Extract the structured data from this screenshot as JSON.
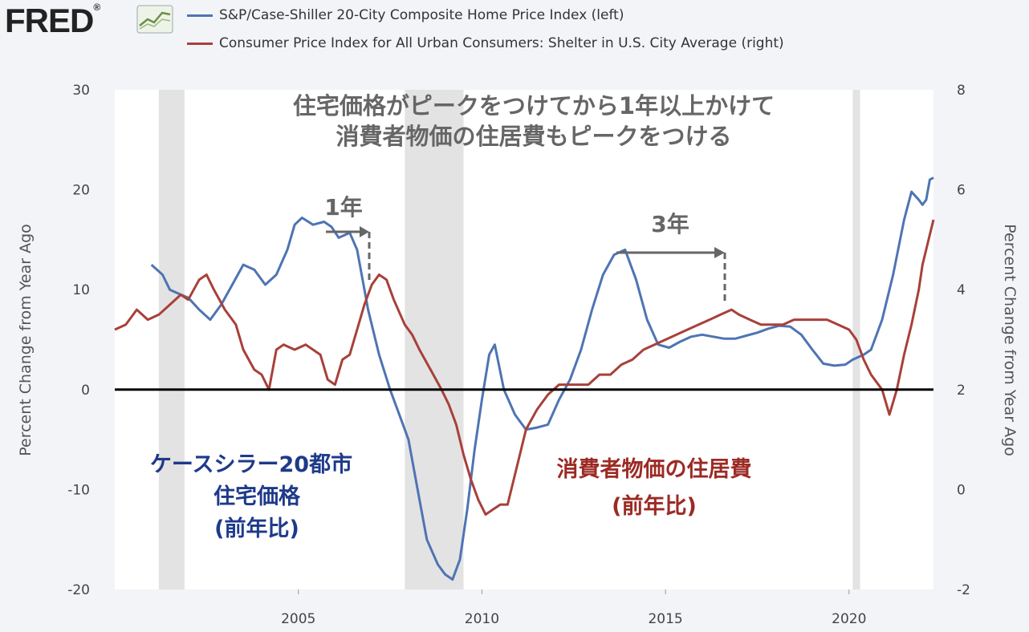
{
  "brand": {
    "logo_text": "FRED",
    "logo_mark": "®"
  },
  "colors": {
    "series1": "#4e74b3",
    "series2": "#a8403a",
    "zero_line": "#000000",
    "recession": "#e3e3e3",
    "plot_bg": "#ffffff"
  },
  "annotations": {
    "title_line1": "住宅価格がピークをつけてから1年以上かけて",
    "title_line2": "消費者物価の住居費もピークをつける",
    "gap1": "1年",
    "gap2": "3年",
    "blue_label": [
      "ケースシラー20都市",
      "住宅価格",
      "(前年比)"
    ],
    "red_label": [
      "消費者物価の住居費",
      "(前年比)"
    ]
  },
  "chart_data": {
    "type": "line",
    "legend_position": "top-left",
    "grid": false,
    "xlabel": "",
    "ylabel_left": "Percent Change from Year Ago",
    "ylabel_right": "Percent Change from Year Ago",
    "xlim": [
      2000.0,
      2022.3
    ],
    "ylim_left": [
      -20,
      30
    ],
    "ylim_right": [
      -2,
      8
    ],
    "x_ticks": [
      2005,
      2010,
      2015,
      2020
    ],
    "y_ticks_left": [
      -20,
      -10,
      0,
      10,
      20,
      30
    ],
    "y_ticks_right": [
      -2,
      0,
      2,
      4,
      6,
      8
    ],
    "recessions": [
      [
        2001.2,
        2001.9
      ],
      [
        2007.9,
        2009.5
      ],
      [
        2020.1,
        2020.3
      ]
    ],
    "series": [
      {
        "name": "S&P/Case-Shiller 20-City Composite Home Price Index (left)",
        "axis": "left",
        "points": [
          [
            2001.0,
            12.5
          ],
          [
            2001.3,
            11.5
          ],
          [
            2001.5,
            10.0
          ],
          [
            2001.8,
            9.5
          ],
          [
            2002.0,
            9.2
          ],
          [
            2002.3,
            8.0
          ],
          [
            2002.6,
            7.0
          ],
          [
            2002.9,
            8.5
          ],
          [
            2003.2,
            10.5
          ],
          [
            2003.5,
            12.5
          ],
          [
            2003.8,
            12.0
          ],
          [
            2004.1,
            10.5
          ],
          [
            2004.4,
            11.5
          ],
          [
            2004.7,
            14.0
          ],
          [
            2004.9,
            16.5
          ],
          [
            2005.1,
            17.2
          ],
          [
            2005.4,
            16.5
          ],
          [
            2005.7,
            16.8
          ],
          [
            2005.9,
            16.3
          ],
          [
            2006.1,
            15.2
          ],
          [
            2006.4,
            15.7
          ],
          [
            2006.6,
            14.0
          ],
          [
            2006.9,
            8.0
          ],
          [
            2007.2,
            3.5
          ],
          [
            2007.5,
            0.0
          ],
          [
            2007.8,
            -3.0
          ],
          [
            2008.0,
            -5.0
          ],
          [
            2008.3,
            -11.0
          ],
          [
            2008.5,
            -15.0
          ],
          [
            2008.8,
            -17.5
          ],
          [
            2009.0,
            -18.5
          ],
          [
            2009.2,
            -19.0
          ],
          [
            2009.4,
            -17.0
          ],
          [
            2009.6,
            -12.0
          ],
          [
            2009.8,
            -6.0
          ],
          [
            2010.0,
            -1.0
          ],
          [
            2010.2,
            3.5
          ],
          [
            2010.35,
            4.5
          ],
          [
            2010.6,
            0.0
          ],
          [
            2010.9,
            -2.5
          ],
          [
            2011.2,
            -4.0
          ],
          [
            2011.5,
            -3.8
          ],
          [
            2011.8,
            -3.5
          ],
          [
            2012.1,
            -1.0
          ],
          [
            2012.4,
            1.0
          ],
          [
            2012.7,
            4.0
          ],
          [
            2013.0,
            8.0
          ],
          [
            2013.3,
            11.5
          ],
          [
            2013.6,
            13.5
          ],
          [
            2013.9,
            14.0
          ],
          [
            2014.2,
            11.0
          ],
          [
            2014.5,
            7.0
          ],
          [
            2014.8,
            4.5
          ],
          [
            2015.1,
            4.2
          ],
          [
            2015.4,
            4.8
          ],
          [
            2015.7,
            5.3
          ],
          [
            2016.0,
            5.5
          ],
          [
            2016.3,
            5.3
          ],
          [
            2016.6,
            5.1
          ],
          [
            2016.9,
            5.1
          ],
          [
            2017.2,
            5.4
          ],
          [
            2017.5,
            5.7
          ],
          [
            2017.8,
            6.1
          ],
          [
            2018.1,
            6.4
          ],
          [
            2018.4,
            6.3
          ],
          [
            2018.7,
            5.5
          ],
          [
            2019.0,
            4.0
          ],
          [
            2019.3,
            2.6
          ],
          [
            2019.6,
            2.4
          ],
          [
            2019.9,
            2.5
          ],
          [
            2020.1,
            3.0
          ],
          [
            2020.4,
            3.5
          ],
          [
            2020.6,
            4.0
          ],
          [
            2020.9,
            7.0
          ],
          [
            2021.2,
            11.5
          ],
          [
            2021.5,
            17.0
          ],
          [
            2021.7,
            19.8
          ],
          [
            2021.9,
            19.0
          ],
          [
            2022.0,
            18.5
          ],
          [
            2022.1,
            19.0
          ],
          [
            2022.2,
            21.0
          ],
          [
            2022.3,
            21.2
          ]
        ]
      },
      {
        "name": "Consumer Price Index for All Urban Consumers: Shelter in U.S. City Average (right)",
        "axis": "right",
        "points": [
          [
            2000.0,
            3.2
          ],
          [
            2000.3,
            3.3
          ],
          [
            2000.6,
            3.6
          ],
          [
            2000.9,
            3.4
          ],
          [
            2001.2,
            3.5
          ],
          [
            2001.5,
            3.7
          ],
          [
            2001.8,
            3.9
          ],
          [
            2002.0,
            3.8
          ],
          [
            2002.3,
            4.2
          ],
          [
            2002.5,
            4.3
          ],
          [
            2002.7,
            4.0
          ],
          [
            2003.0,
            3.6
          ],
          [
            2003.3,
            3.3
          ],
          [
            2003.5,
            2.8
          ],
          [
            2003.8,
            2.4
          ],
          [
            2004.0,
            2.3
          ],
          [
            2004.2,
            2.0
          ],
          [
            2004.4,
            2.8
          ],
          [
            2004.6,
            2.9
          ],
          [
            2004.9,
            2.8
          ],
          [
            2005.2,
            2.9
          ],
          [
            2005.4,
            2.8
          ],
          [
            2005.6,
            2.7
          ],
          [
            2005.8,
            2.2
          ],
          [
            2006.0,
            2.1
          ],
          [
            2006.2,
            2.6
          ],
          [
            2006.4,
            2.7
          ],
          [
            2006.6,
            3.2
          ],
          [
            2006.8,
            3.7
          ],
          [
            2007.0,
            4.1
          ],
          [
            2007.2,
            4.3
          ],
          [
            2007.4,
            4.2
          ],
          [
            2007.6,
            3.8
          ],
          [
            2007.9,
            3.3
          ],
          [
            2008.1,
            3.1
          ],
          [
            2008.3,
            2.8
          ],
          [
            2008.6,
            2.4
          ],
          [
            2008.9,
            2.0
          ],
          [
            2009.1,
            1.7
          ],
          [
            2009.3,
            1.3
          ],
          [
            2009.5,
            0.7
          ],
          [
            2009.7,
            0.2
          ],
          [
            2009.9,
            -0.2
          ],
          [
            2010.1,
            -0.5
          ],
          [
            2010.3,
            -0.4
          ],
          [
            2010.5,
            -0.3
          ],
          [
            2010.7,
            -0.3
          ],
          [
            2010.9,
            0.3
          ],
          [
            2011.2,
            1.2
          ],
          [
            2011.5,
            1.6
          ],
          [
            2011.8,
            1.9
          ],
          [
            2012.1,
            2.1
          ],
          [
            2012.3,
            2.1
          ],
          [
            2012.6,
            2.1
          ],
          [
            2012.9,
            2.1
          ],
          [
            2013.2,
            2.3
          ],
          [
            2013.5,
            2.3
          ],
          [
            2013.8,
            2.5
          ],
          [
            2014.1,
            2.6
          ],
          [
            2014.4,
            2.8
          ],
          [
            2014.7,
            2.9
          ],
          [
            2015.0,
            3.0
          ],
          [
            2015.3,
            3.1
          ],
          [
            2015.6,
            3.2
          ],
          [
            2015.9,
            3.3
          ],
          [
            2016.2,
            3.4
          ],
          [
            2016.5,
            3.5
          ],
          [
            2016.8,
            3.6
          ],
          [
            2017.0,
            3.5
          ],
          [
            2017.3,
            3.4
          ],
          [
            2017.6,
            3.3
          ],
          [
            2017.9,
            3.3
          ],
          [
            2018.2,
            3.3
          ],
          [
            2018.5,
            3.4
          ],
          [
            2018.8,
            3.4
          ],
          [
            2019.1,
            3.4
          ],
          [
            2019.4,
            3.4
          ],
          [
            2019.7,
            3.3
          ],
          [
            2020.0,
            3.2
          ],
          [
            2020.2,
            3.0
          ],
          [
            2020.4,
            2.6
          ],
          [
            2020.6,
            2.3
          ],
          [
            2020.9,
            2.0
          ],
          [
            2021.1,
            1.5
          ],
          [
            2021.3,
            2.0
          ],
          [
            2021.5,
            2.7
          ],
          [
            2021.7,
            3.3
          ],
          [
            2021.9,
            4.0
          ],
          [
            2022.0,
            4.5
          ],
          [
            2022.2,
            5.1
          ],
          [
            2022.3,
            5.4
          ]
        ]
      }
    ]
  }
}
